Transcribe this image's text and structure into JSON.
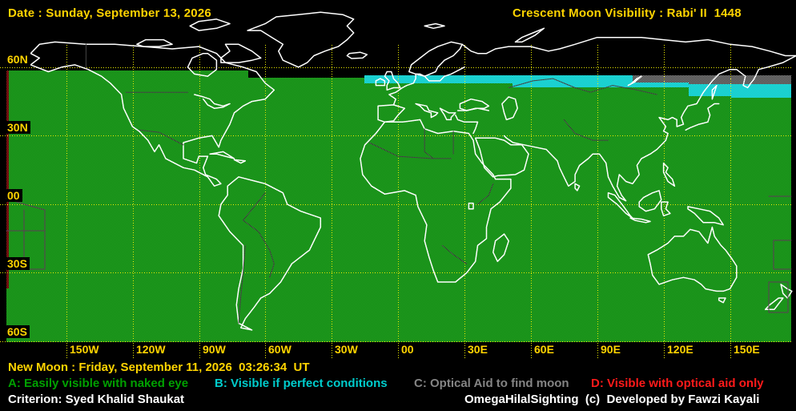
{
  "header": {
    "date_label": "Date : Sunday, September 13, 2026",
    "title": "Crescent Moon Visibility : Rabi' II  1448"
  },
  "map": {
    "lat_labels": [
      "60N",
      "30N",
      "00",
      "30S",
      "60S"
    ],
    "lon_labels": [
      "150W",
      "120W",
      "90W",
      "60W",
      "30W",
      "00",
      "30E",
      "60E",
      "90E",
      "120E",
      "150E"
    ],
    "colors": {
      "background": "#000000",
      "zone_a_green": "#1d921d",
      "zone_b_cyan": "#00cccc",
      "zone_c_gray": "#8a8a8a",
      "zone_d_red": "#b22222",
      "grid": "#e6e600",
      "coastline": "#ffffff",
      "label_text": "#ffd400"
    }
  },
  "footer": {
    "new_moon": "New Moon : Friday, September 11, 2026  03:26:34  UT",
    "legend": [
      {
        "key": "A",
        "label": "A: Easily visible with naked eye",
        "color": "#00a000"
      },
      {
        "key": "B",
        "label": "B: Visible if perfect conditions",
        "color": "#00cccc"
      },
      {
        "key": "C",
        "label": "C: Optical Aid to find moon",
        "color": "#848484"
      },
      {
        "key": "D",
        "label": "D: Visible with optical aid only",
        "color": "#ff1a1a"
      }
    ],
    "criterion": "Criterion: Syed Khalid Shaukat",
    "credit": "OmegaHilalSighting  (c)  Developed by Fawzi Kayali"
  }
}
